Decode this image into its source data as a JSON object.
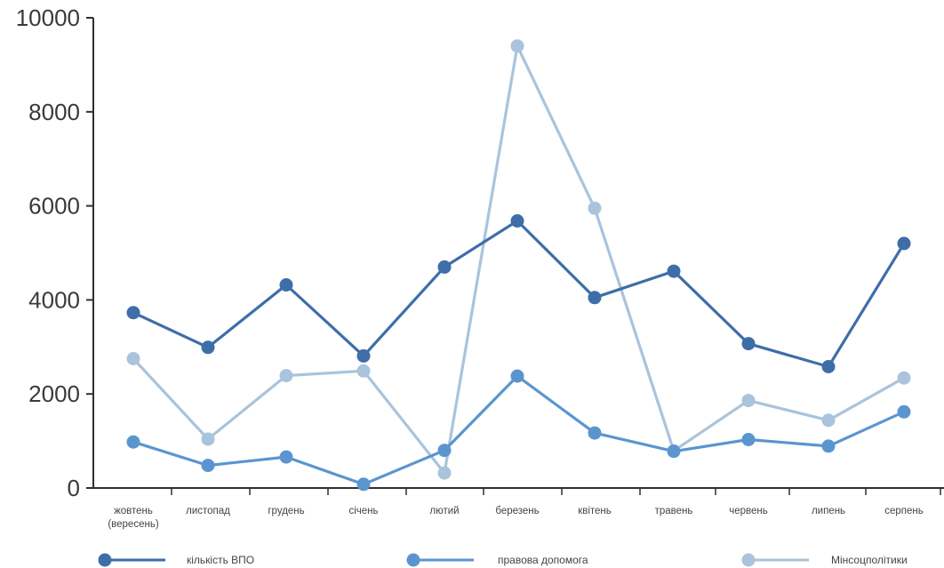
{
  "chart_data": {
    "type": "line",
    "categories": [
      "жовтень (вересень)",
      "листопад",
      "грудень",
      "січень",
      "лютий",
      "березень",
      "квітень",
      "травень",
      "червень",
      "липень",
      "серпень"
    ],
    "category_lines": [
      [
        "жовтень",
        "(вересень)"
      ],
      [
        "листопад"
      ],
      [
        "грудень"
      ],
      [
        "січень"
      ],
      [
        "лютий"
      ],
      [
        "березень"
      ],
      [
        "квітень"
      ],
      [
        "травень"
      ],
      [
        "червень"
      ],
      [
        "липень"
      ],
      [
        "серпень"
      ]
    ],
    "series": [
      {
        "name": "кількість ВПО",
        "color": "#3e6ea8",
        "values": [
          3730,
          2990,
          4320,
          2810,
          4700,
          5680,
          4050,
          4610,
          3070,
          2580,
          5200
        ]
      },
      {
        "name": "правова допомога",
        "color": "#5b95cf",
        "values": [
          980,
          480,
          660,
          80,
          800,
          2380,
          1170,
          780,
          1030,
          890,
          1620
        ]
      },
      {
        "name": "Мінсоцполітики",
        "color": "#a9c4dc",
        "values": [
          2750,
          1040,
          2390,
          2490,
          320,
          9400,
          5950,
          790,
          1860,
          1440,
          2340
        ]
      }
    ],
    "yticks": [
      "0",
      "2000",
      "4000",
      "6000",
      "8000",
      "10000"
    ],
    "ylim": [
      0,
      10000
    ],
    "grid": false,
    "legend_position": "bottom"
  }
}
